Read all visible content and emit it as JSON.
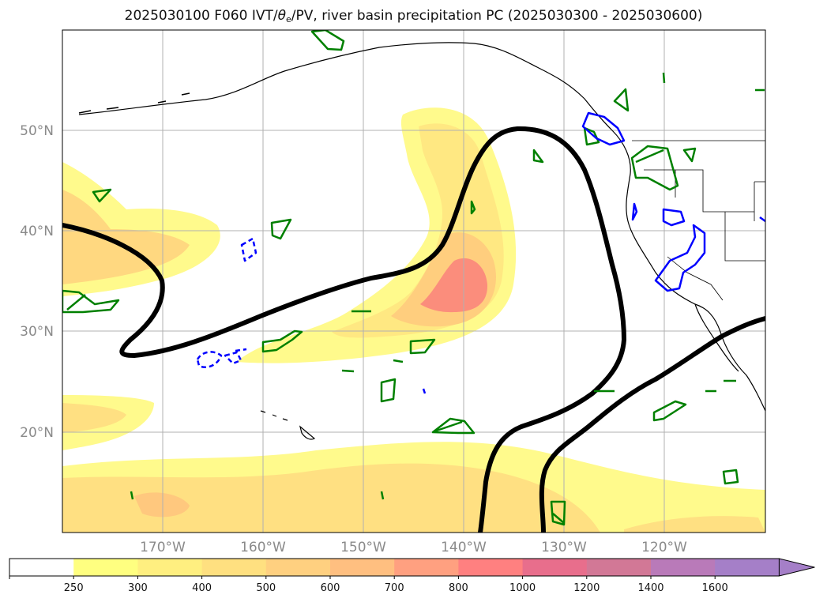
{
  "title": {
    "prefix": "2025030100 F060 IVT/",
    "theta": "θ",
    "sub": "e",
    "suffix": "/PV, river basin precipitation PC (2025030300 - 2025030600)"
  },
  "map": {
    "lat_labels": [
      "50°N",
      "40°N",
      "30°N",
      "20°N"
    ],
    "lon_labels": [
      "170°W",
      "160°W",
      "150°W",
      "140°W",
      "130°W",
      "120°W"
    ],
    "grid": true
  },
  "colorbar": {
    "levels": [
      "250",
      "300",
      "400",
      "500",
      "600",
      "700",
      "800",
      "1000",
      "1200",
      "1400",
      "1600"
    ],
    "colors": [
      "#ffffff",
      "#ffff80",
      "#ffef80",
      "#ffe080",
      "#ffd080",
      "#ffbf80",
      "#ffa080",
      "#ff8080",
      "#e86e8c",
      "#d27896",
      "#b97ab9",
      "#a57fc8"
    ],
    "extend": "max"
  },
  "colors": {
    "ivt_low": "#fff98a",
    "ivt_mid": "#ffe082",
    "ivt_high": "#ffc37d",
    "ivt_peak": "#fa8a7a",
    "pv_contour": "#000000",
    "precip_positive": "#008000",
    "precip_negative": "#0000ff",
    "coastline": "#000000",
    "grid": "#b0b0b0"
  }
}
